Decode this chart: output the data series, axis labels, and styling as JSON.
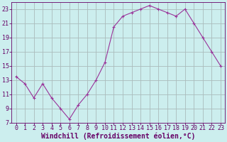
{
  "x": [
    0,
    1,
    2,
    3,
    4,
    5,
    6,
    7,
    8,
    9,
    10,
    11,
    12,
    13,
    14,
    15,
    16,
    17,
    18,
    19,
    20,
    21,
    22,
    23
  ],
  "y": [
    13.5,
    12.5,
    10.5,
    12.5,
    10.5,
    9.0,
    7.5,
    9.5,
    11.0,
    13.0,
    15.5,
    20.5,
    22.0,
    22.5,
    23.0,
    23.5,
    23.0,
    22.5,
    22.0,
    23.0,
    21.0,
    19.0,
    17.0,
    15.0
  ],
  "line_color": "#993399",
  "marker": "+",
  "bg_color": "#cceeee",
  "grid_color": "#aabbbb",
  "xlabel": "Windchill (Refroidissement éolien,°C)",
  "ylim": [
    7,
    24
  ],
  "xlim": [
    -0.5,
    23.5
  ],
  "yticks": [
    7,
    9,
    11,
    13,
    15,
    17,
    19,
    21,
    23
  ],
  "xticks": [
    0,
    1,
    2,
    3,
    4,
    5,
    6,
    7,
    8,
    9,
    10,
    11,
    12,
    13,
    14,
    15,
    16,
    17,
    18,
    19,
    20,
    21,
    22,
    23
  ],
  "tick_color": "#660066",
  "label_color": "#660066",
  "font_size": 6,
  "xlabel_fontsize": 7,
  "linewidth": 0.8,
  "markersize": 3.5
}
